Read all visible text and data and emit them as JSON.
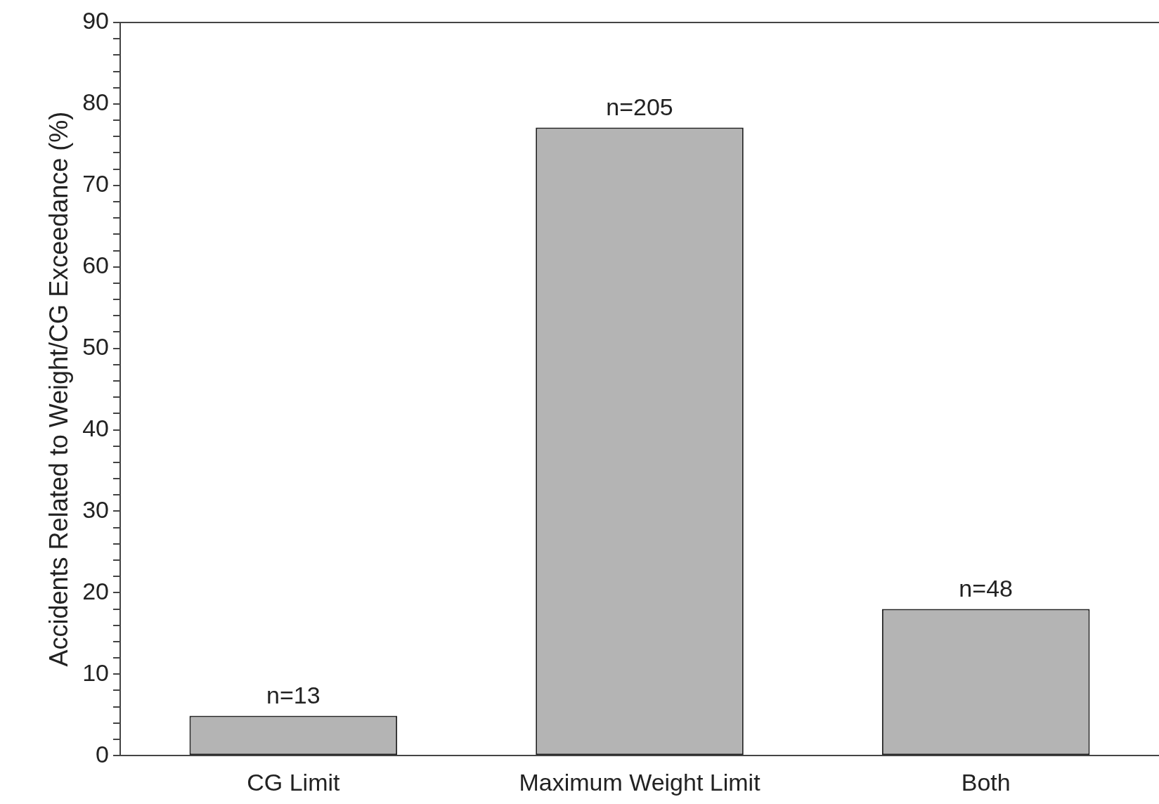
{
  "chart_data": {
    "type": "bar",
    "ylabel": "Accidents Related to Weight/CG Exceedance (%)",
    "categories": [
      "CG Limit",
      "Maximum Weight Limit",
      "Both"
    ],
    "values": [
      4.9,
      77.1,
      18.0
    ],
    "annotations": [
      {
        "text": "n=13",
        "x": "CG Limit",
        "y": 4.9
      },
      {
        "text": "n=205",
        "x": "Maximum Weight Limit",
        "y": 77.1
      },
      {
        "text": "n=48",
        "x": "Both",
        "y": 18.0
      }
    ],
    "color": "#b4b4b4",
    "ylim": [
      0,
      90
    ],
    "yticks": [
      0,
      {
        "value": 2,
        "label": null
      },
      {
        "value": 4,
        "label": null
      },
      {
        "value": 6,
        "label": null
      },
      {
        "value": 8,
        "label": null
      },
      10,
      {
        "value": 12,
        "label": null
      },
      {
        "value": 14,
        "label": null
      },
      {
        "value": 16,
        "label": null
      },
      {
        "value": 18,
        "label": null
      },
      20,
      {
        "value": 22,
        "label": null
      },
      {
        "value": 24,
        "label": null
      },
      {
        "value": 26,
        "label": null
      },
      {
        "value": 28,
        "label": null
      },
      30,
      {
        "value": 32,
        "label": null
      },
      {
        "value": 34,
        "label": null
      },
      {
        "value": 36,
        "label": null
      },
      {
        "value": 38,
        "label": null
      },
      40,
      {
        "value": 42,
        "label": null
      },
      {
        "value": 44,
        "label": null
      },
      {
        "value": 46,
        "label": null
      },
      {
        "value": 48,
        "label": null
      },
      50,
      {
        "value": 52,
        "label": null
      },
      {
        "value": 54,
        "label": null
      },
      {
        "value": 56,
        "label": null
      },
      {
        "value": 58,
        "label": null
      },
      60,
      {
        "value": 62,
        "label": null
      },
      {
        "value": 64,
        "label": null
      },
      {
        "value": 66,
        "label": null
      },
      {
        "value": 68,
        "label": null
      },
      70,
      {
        "value": 72,
        "label": null
      },
      {
        "value": 74,
        "label": null
      },
      {
        "value": 76,
        "label": null
      },
      {
        "value": 78,
        "label": null
      },
      80,
      {
        "value": 82,
        "label": null
      },
      {
        "value": 84,
        "label": null
      },
      {
        "value": 86,
        "label": null
      },
      {
        "value": 88,
        "label": null
      },
      90
    ],
    "grid": false,
    "legend": false
  }
}
